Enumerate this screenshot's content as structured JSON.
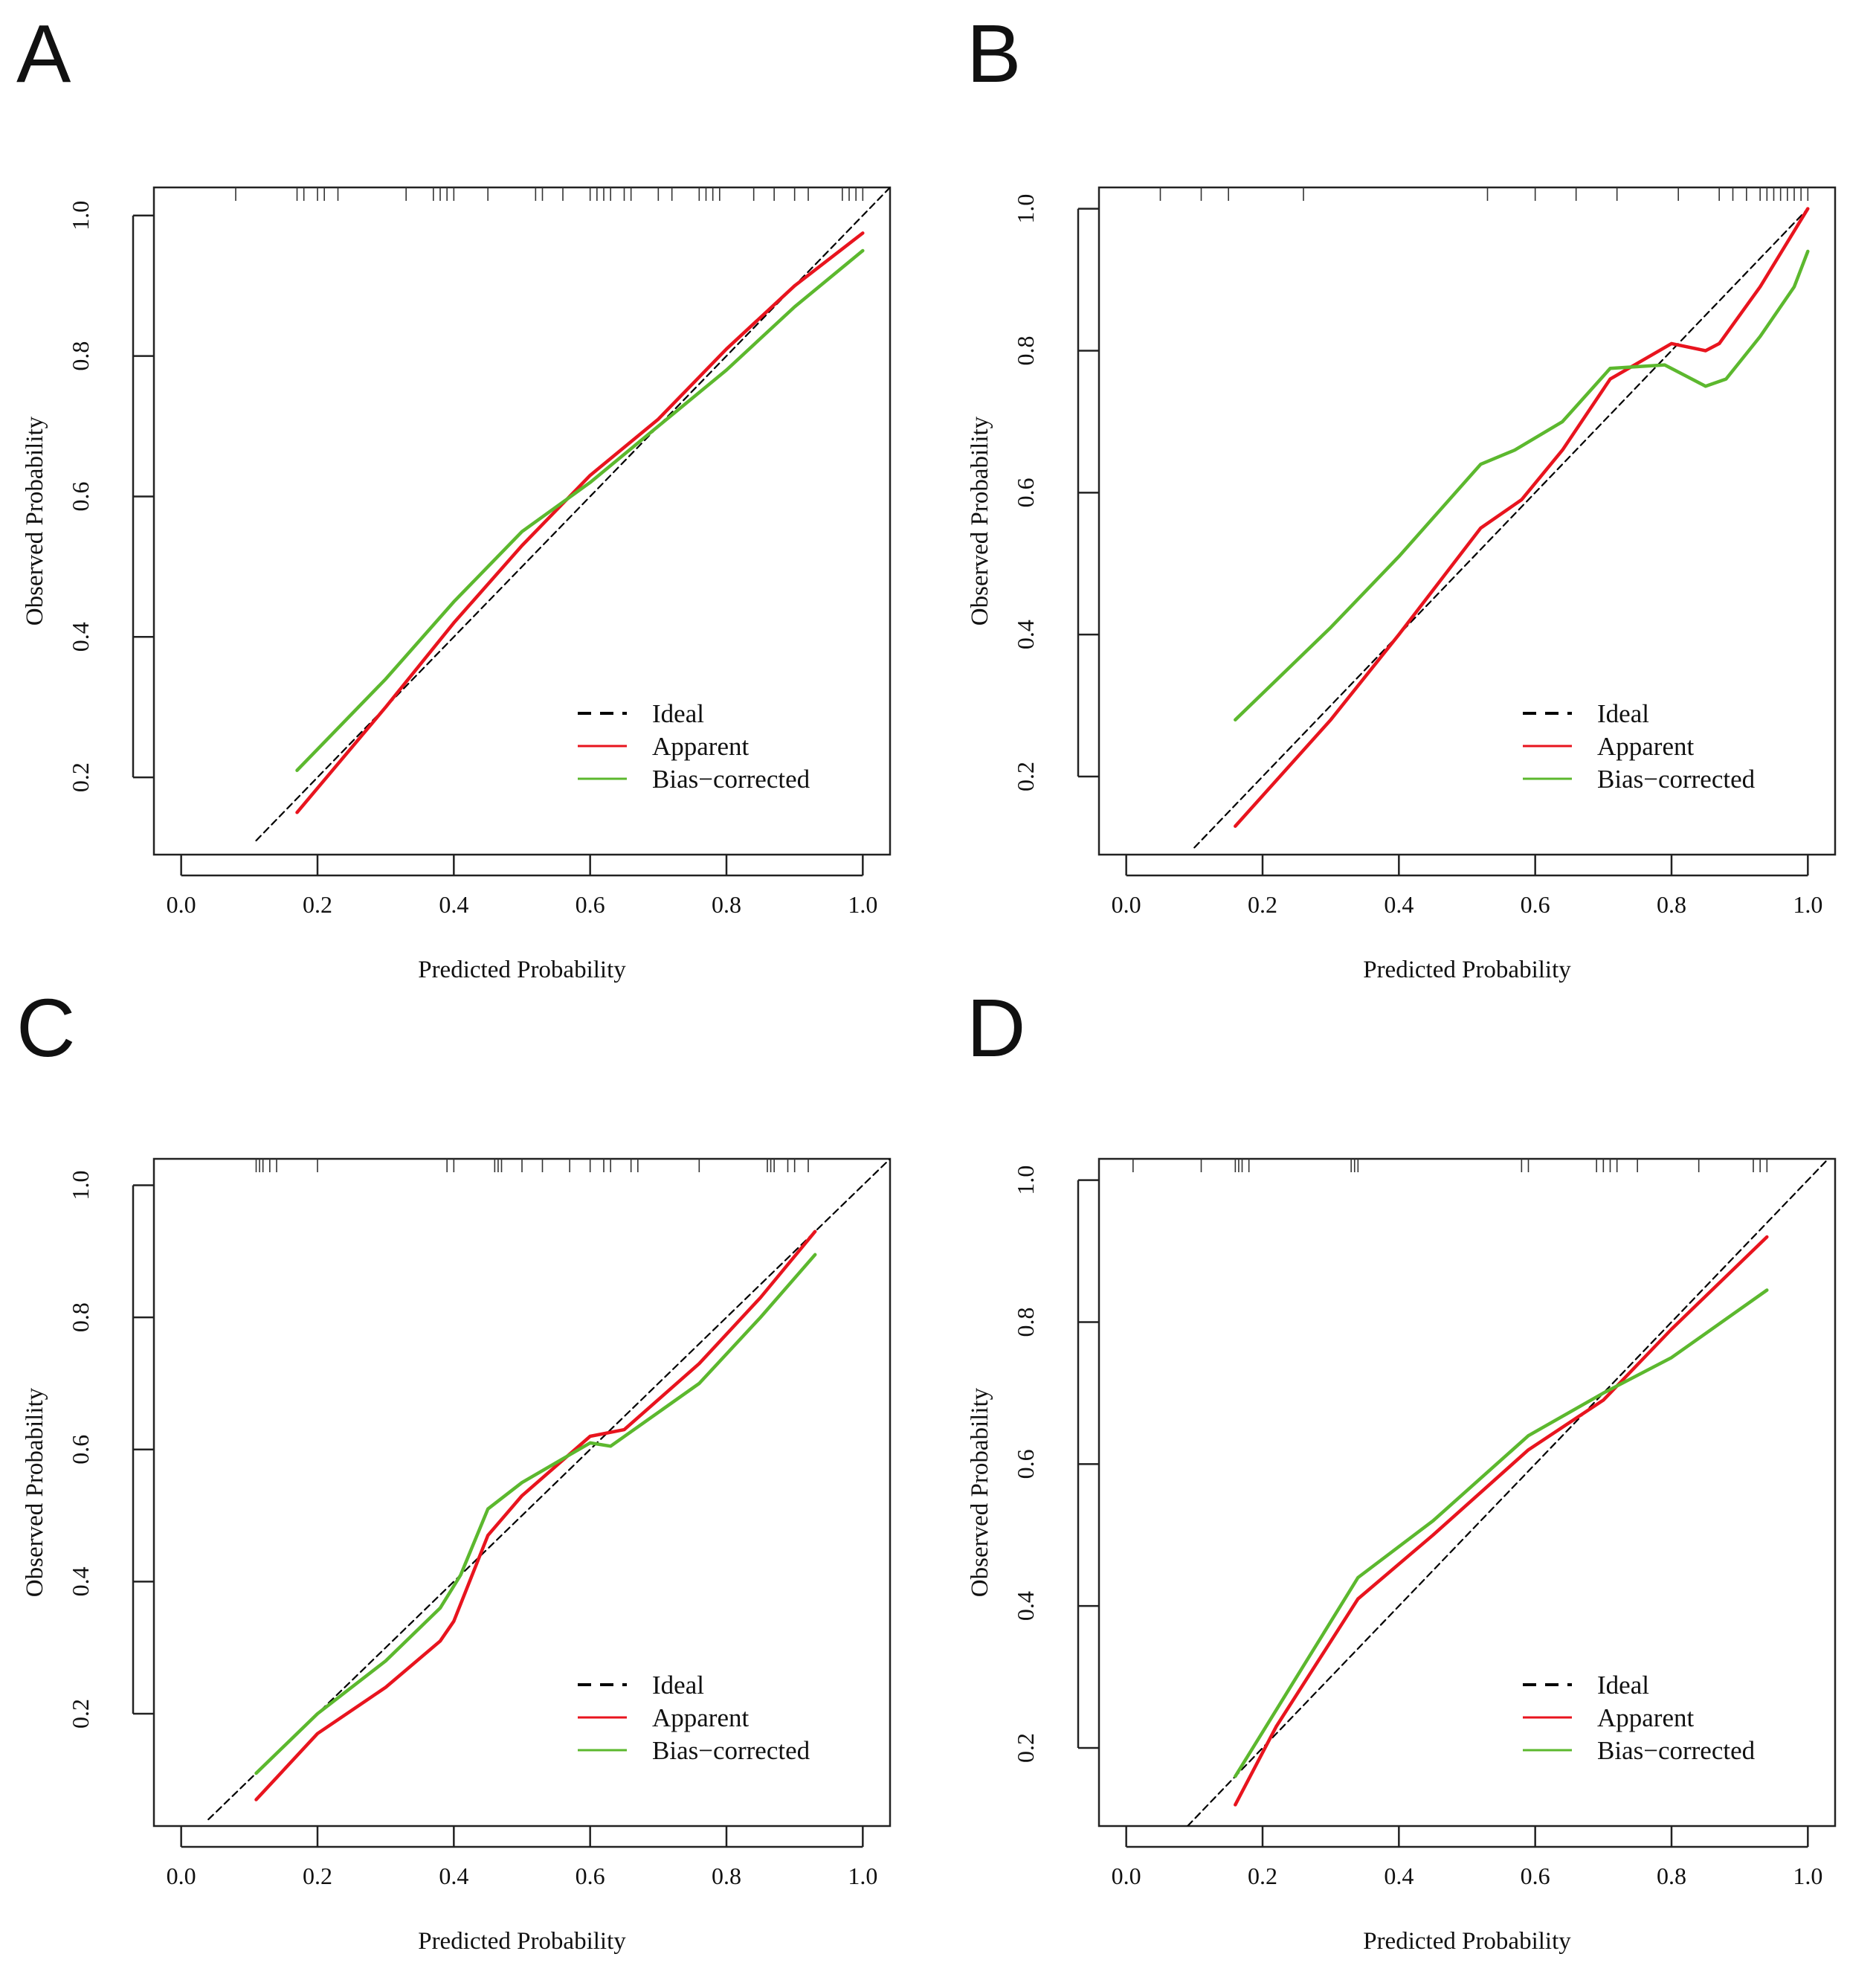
{
  "chart_data": [
    {
      "type": "line",
      "panel": "A",
      "xlabel": "Predicted Probability",
      "ylabel": "Observed Probability",
      "xlim": [
        -0.04,
        1.04
      ],
      "ylim": [
        0.09,
        1.04
      ],
      "xticks": [
        "0.0",
        "0.2",
        "0.4",
        "0.6",
        "0.8",
        "1.0"
      ],
      "yticks": [
        "0.2",
        "0.4",
        "0.6",
        "0.8",
        "1.0"
      ],
      "legend": {
        "placement": "bottom-right",
        "entries": [
          "Ideal",
          "Apparent",
          "Bias−corrected"
        ]
      },
      "colors": {
        "ideal": "#000000",
        "apparent": "#e8141e",
        "bias": "#5cb82e"
      },
      "rug": [
        0.08,
        0.17,
        0.18,
        0.2,
        0.21,
        0.23,
        0.33,
        0.37,
        0.38,
        0.39,
        0.4,
        0.45,
        0.52,
        0.53,
        0.56,
        0.6,
        0.61,
        0.62,
        0.63,
        0.65,
        0.66,
        0.7,
        0.72,
        0.76,
        0.77,
        0.78,
        0.79,
        0.84,
        0.87,
        0.9,
        0.92,
        0.97,
        0.98,
        0.99,
        1.0
      ],
      "series": [
        {
          "name": "Ideal",
          "x": [
            0.11,
            1.04
          ],
          "y": [
            0.11,
            1.04
          ]
        },
        {
          "name": "Apparent",
          "x": [
            0.17,
            0.3,
            0.4,
            0.5,
            0.6,
            0.7,
            0.8,
            0.9,
            1.0
          ],
          "y": [
            0.15,
            0.3,
            0.42,
            0.53,
            0.63,
            0.71,
            0.81,
            0.9,
            0.975
          ]
        },
        {
          "name": "Bias−corrected",
          "x": [
            0.17,
            0.3,
            0.4,
            0.5,
            0.6,
            0.7,
            0.8,
            0.9,
            1.0
          ],
          "y": [
            0.21,
            0.34,
            0.45,
            0.55,
            0.62,
            0.7,
            0.78,
            0.87,
            0.95
          ]
        }
      ]
    },
    {
      "type": "line",
      "panel": "B",
      "xlabel": "Predicted Probability",
      "ylabel": "Observed Probability",
      "xlim": [
        -0.04,
        1.04
      ],
      "ylim": [
        0.09,
        1.03
      ],
      "xticks": [
        "0.0",
        "0.2",
        "0.4",
        "0.6",
        "0.8",
        "1.0"
      ],
      "yticks": [
        "0.2",
        "0.4",
        "0.6",
        "0.8",
        "1.0"
      ],
      "legend": {
        "placement": "bottom-right",
        "entries": [
          "Ideal",
          "Apparent",
          "Bias−corrected"
        ]
      },
      "colors": {
        "ideal": "#000000",
        "apparent": "#e8141e",
        "bias": "#5cb82e"
      },
      "rug": [
        0.05,
        0.11,
        0.15,
        0.26,
        0.53,
        0.6,
        0.66,
        0.72,
        0.81,
        0.87,
        0.89,
        0.91,
        0.93,
        0.94,
        0.95,
        0.96,
        0.97,
        0.98,
        0.99,
        1.0
      ],
      "series": [
        {
          "name": "Ideal",
          "x": [
            0.1,
            1.0
          ],
          "y": [
            0.1,
            1.0
          ]
        },
        {
          "name": "Apparent",
          "x": [
            0.16,
            0.3,
            0.4,
            0.52,
            0.58,
            0.64,
            0.71,
            0.8,
            0.85,
            0.87,
            0.93,
            1.0
          ],
          "y": [
            0.13,
            0.28,
            0.4,
            0.55,
            0.59,
            0.66,
            0.76,
            0.81,
            0.8,
            0.81,
            0.89,
            1.0
          ]
        },
        {
          "name": "Bias−corrected",
          "x": [
            0.16,
            0.3,
            0.4,
            0.52,
            0.57,
            0.64,
            0.71,
            0.79,
            0.85,
            0.88,
            0.93,
            0.98,
            1.0
          ],
          "y": [
            0.28,
            0.41,
            0.51,
            0.64,
            0.66,
            0.7,
            0.775,
            0.78,
            0.75,
            0.76,
            0.82,
            0.89,
            0.94
          ]
        }
      ]
    },
    {
      "type": "line",
      "panel": "C",
      "xlabel": "Predicted Probability",
      "ylabel": "Observed Probability",
      "xlim": [
        -0.04,
        1.04
      ],
      "ylim": [
        0.03,
        1.04
      ],
      "xticks": [
        "0.0",
        "0.2",
        "0.4",
        "0.6",
        "0.8",
        "1.0"
      ],
      "yticks": [
        "0.2",
        "0.4",
        "0.6",
        "0.8",
        "1.0"
      ],
      "legend": {
        "placement": "bottom-right",
        "entries": [
          "Ideal",
          "Apparent",
          "Bias−corrected"
        ]
      },
      "colors": {
        "ideal": "#000000",
        "apparent": "#e8141e",
        "bias": "#5cb82e"
      },
      "rug": [
        0.11,
        0.115,
        0.12,
        0.13,
        0.14,
        0.2,
        0.39,
        0.4,
        0.46,
        0.465,
        0.47,
        0.5,
        0.53,
        0.57,
        0.6,
        0.62,
        0.63,
        0.66,
        0.67,
        0.76,
        0.86,
        0.865,
        0.87,
        0.89,
        0.9,
        0.92
      ],
      "series": [
        {
          "name": "Ideal",
          "x": [
            0.04,
            1.04
          ],
          "y": [
            0.04,
            1.04
          ]
        },
        {
          "name": "Apparent",
          "x": [
            0.11,
            0.2,
            0.3,
            0.38,
            0.4,
            0.45,
            0.5,
            0.6,
            0.65,
            0.76,
            0.85,
            0.93
          ],
          "y": [
            0.07,
            0.17,
            0.24,
            0.31,
            0.34,
            0.47,
            0.53,
            0.62,
            0.63,
            0.73,
            0.83,
            0.93
          ]
        },
        {
          "name": "Bias−corrected",
          "x": [
            0.11,
            0.2,
            0.3,
            0.38,
            0.41,
            0.45,
            0.5,
            0.6,
            0.63,
            0.76,
            0.85,
            0.93
          ],
          "y": [
            0.11,
            0.2,
            0.28,
            0.36,
            0.41,
            0.51,
            0.55,
            0.61,
            0.605,
            0.7,
            0.8,
            0.895
          ]
        }
      ]
    },
    {
      "type": "line",
      "panel": "D",
      "xlabel": "Predicted Probability",
      "ylabel": "Observed Probability",
      "xlim": [
        -0.04,
        1.04
      ],
      "ylim": [
        0.09,
        1.03
      ],
      "xticks": [
        "0.0",
        "0.2",
        "0.4",
        "0.6",
        "0.8",
        "1.0"
      ],
      "yticks": [
        "0.2",
        "0.4",
        "0.6",
        "0.8",
        "1.0"
      ],
      "legend": {
        "placement": "bottom-right",
        "entries": [
          "Ideal",
          "Apparent",
          "Bias−corrected"
        ]
      },
      "colors": {
        "ideal": "#000000",
        "apparent": "#e8141e",
        "bias": "#5cb82e"
      },
      "rug": [
        0.01,
        0.11,
        0.16,
        0.165,
        0.17,
        0.18,
        0.33,
        0.335,
        0.34,
        0.58,
        0.59,
        0.69,
        0.7,
        0.71,
        0.72,
        0.75,
        0.84,
        0.92,
        0.93,
        0.94
      ],
      "series": [
        {
          "name": "Ideal",
          "x": [
            0.09,
            1.03
          ],
          "y": [
            0.09,
            1.03
          ]
        },
        {
          "name": "Apparent",
          "x": [
            0.16,
            0.22,
            0.34,
            0.45,
            0.59,
            0.7,
            0.8,
            0.94
          ],
          "y": [
            0.12,
            0.23,
            0.41,
            0.5,
            0.62,
            0.69,
            0.79,
            0.92
          ]
        },
        {
          "name": "Bias−corrected",
          "x": [
            0.16,
            0.25,
            0.34,
            0.45,
            0.59,
            0.7,
            0.8,
            0.94
          ],
          "y": [
            0.16,
            0.3,
            0.44,
            0.52,
            0.64,
            0.7,
            0.75,
            0.845
          ]
        }
      ]
    }
  ]
}
